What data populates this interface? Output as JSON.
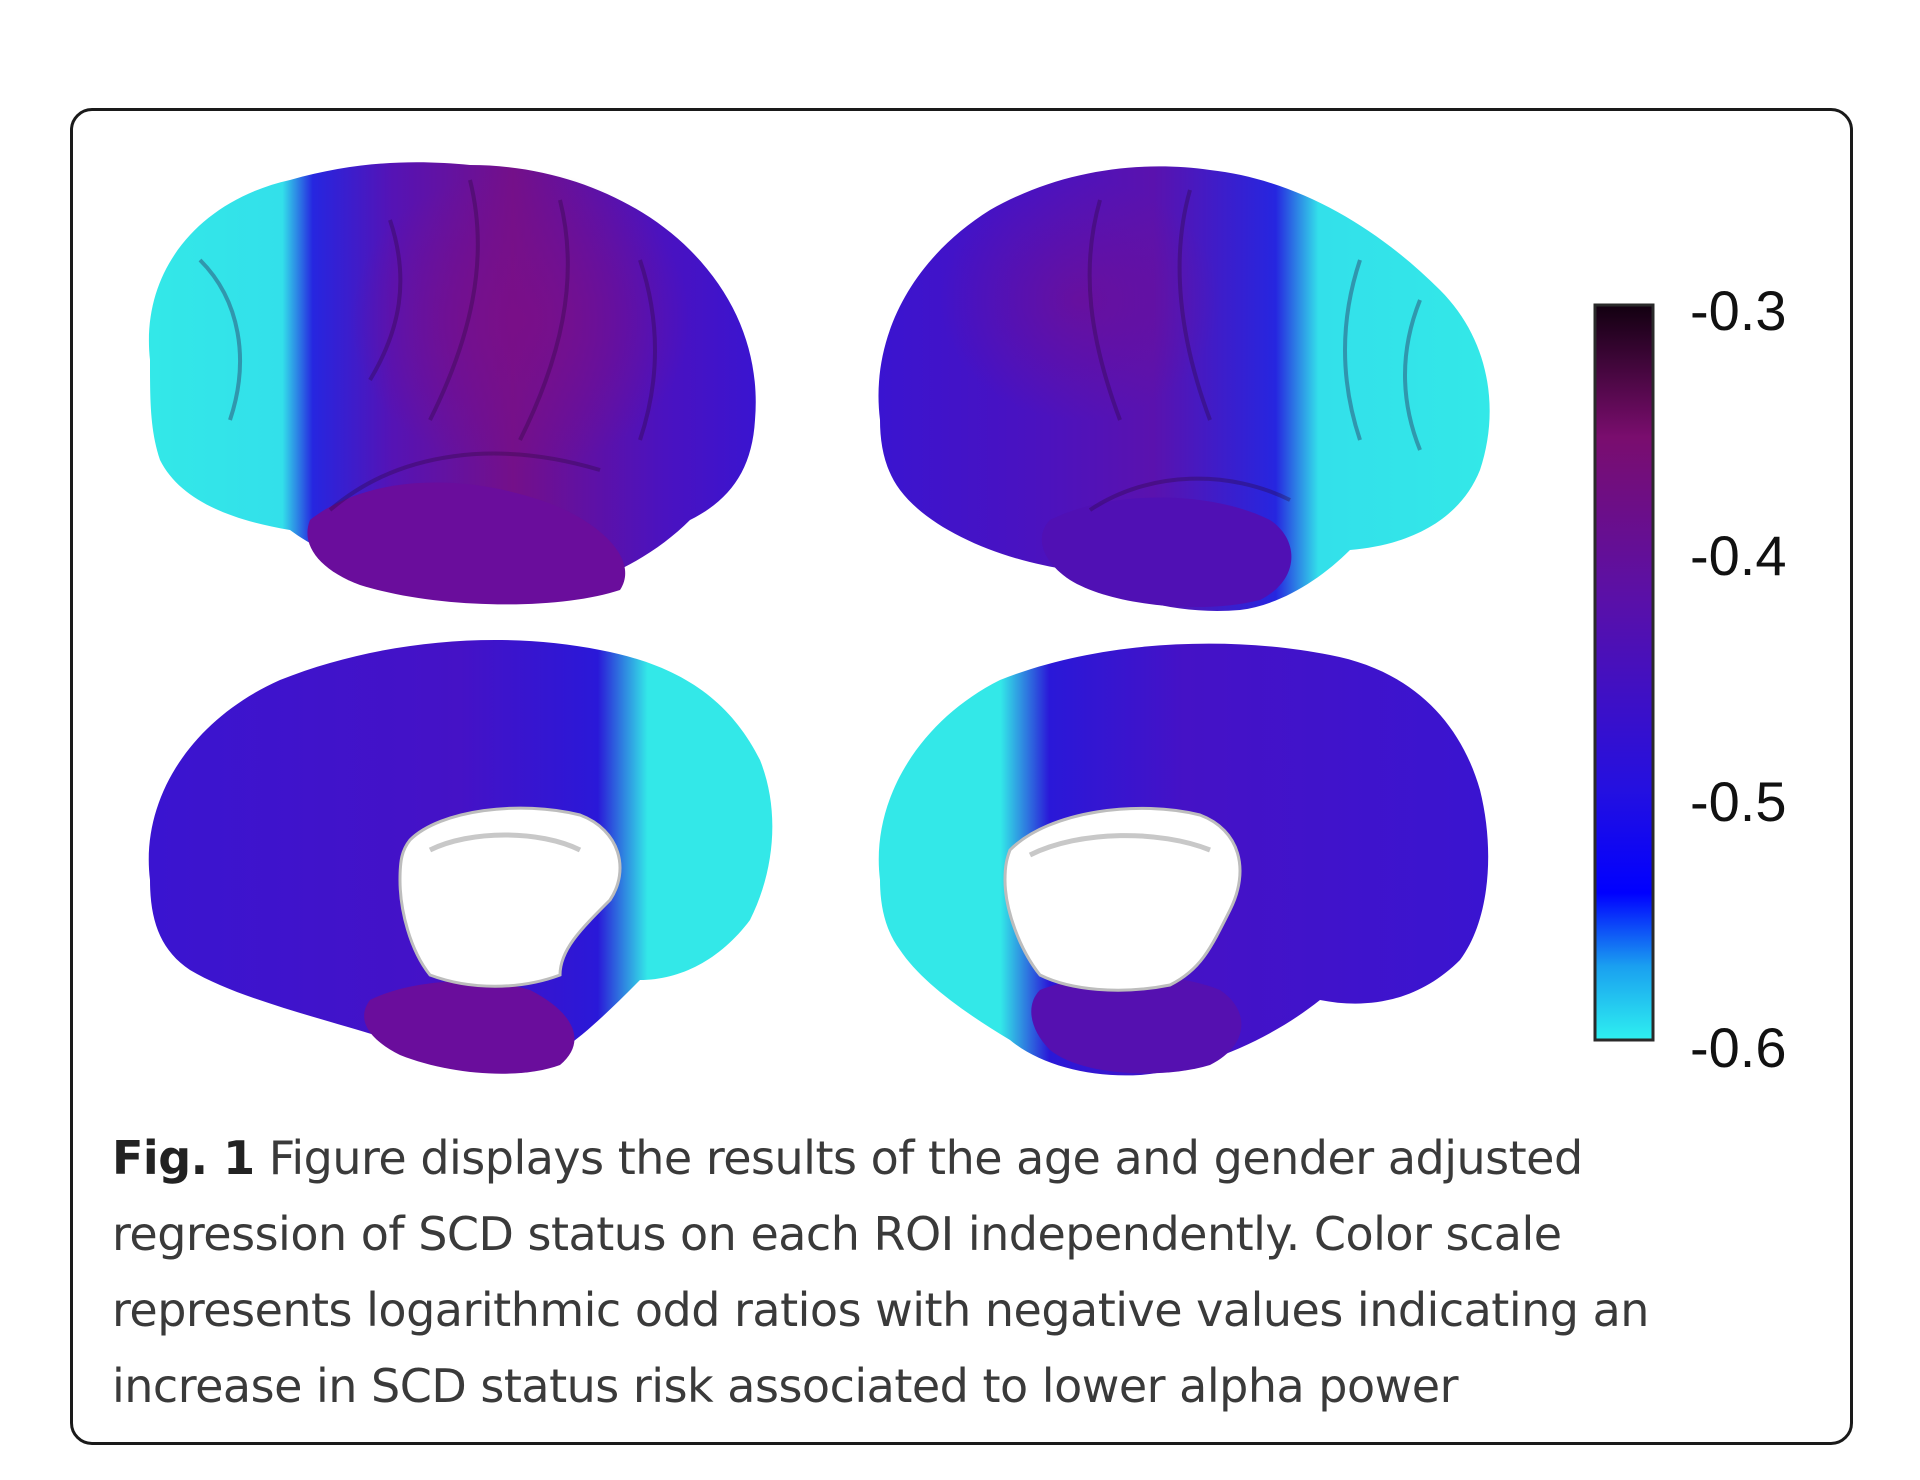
{
  "colorbar": {
    "ticks": [
      "-0.3",
      "-0.4",
      "-0.5",
      "-0.6"
    ],
    "range": [
      -0.6,
      -0.3
    ],
    "colormap": [
      {
        "value": -0.3,
        "color": "#120010"
      },
      {
        "value": -0.36,
        "color": "#7a0d6e"
      },
      {
        "value": -0.42,
        "color": "#5a10a8"
      },
      {
        "value": -0.5,
        "color": "#2410e0"
      },
      {
        "value": -0.54,
        "color": "#0000ff"
      },
      {
        "value": -0.57,
        "color": "#1aa0f0"
      },
      {
        "value": -0.6,
        "color": "#2ef0f0"
      }
    ]
  },
  "brain_colors": {
    "frontal": "#33e8e8",
    "transition": "#2a18d8",
    "parietal": "#4b12c0",
    "temporal": "#6a0d9c",
    "central": "#7a0f88",
    "midline": "#ffffff"
  },
  "caption": {
    "label": "Fig. 1",
    "text": "Figure displays the results of the age and gender adjusted regression of SCD status on each ROI independently. Color scale represents logarithmic odd ratios with negative values indicating an increase in SCD status risk associated to lower alpha power"
  }
}
